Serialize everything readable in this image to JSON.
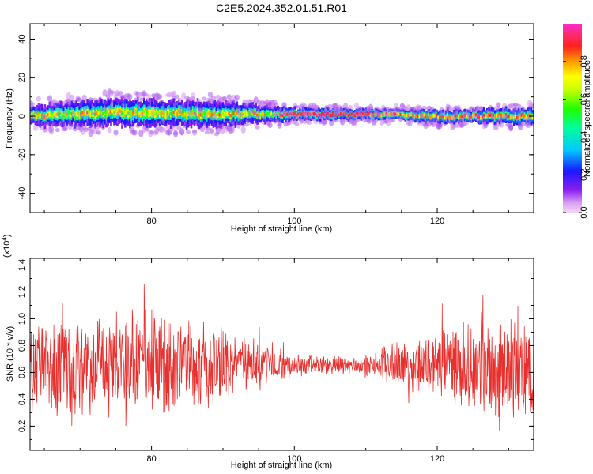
{
  "title": "C2E5.2024.352.01.51.R01",
  "colors": {
    "snr_line": "#e8312f",
    "axis": "#000000"
  },
  "colorbar": {
    "label": "Normalized spectral amplitude",
    "ticks": [
      0.0,
      0.2,
      0.4,
      0.6,
      0.8
    ],
    "tick_labels": [
      "0.0",
      "0.2",
      "0.4",
      "0.6",
      "0.8"
    ],
    "range": [
      0,
      1
    ],
    "colormap": "rainbow (magenta-purple-blue-cyan-green-yellow-orange-red-magenta)"
  },
  "chart_data": [
    {
      "type": "heatmap",
      "name": "spectrogram",
      "xlabel": "Height of straight line (km)",
      "ylabel": "Frequency (Hz)",
      "xlim": [
        63,
        133.5
      ],
      "ylim": [
        -50,
        48
      ],
      "xticks": [
        80,
        100,
        120
      ],
      "xtick_labels": [
        "80",
        "100",
        "120"
      ],
      "yticks": [
        -40,
        -20,
        0,
        20,
        40
      ],
      "ytick_labels": [
        "-40",
        "-20",
        "0",
        "20",
        "40"
      ],
      "description_points": [
        {
          "x": 63,
          "center_freq": 0,
          "halfwidth": 5
        },
        {
          "x": 75,
          "center_freq": 2,
          "halfwidth": 7
        },
        {
          "x": 90,
          "center_freq": 1,
          "halfwidth": 6
        },
        {
          "x": 100,
          "center_freq": 1,
          "halfwidth": 3
        },
        {
          "x": 110,
          "center_freq": 1,
          "halfwidth": 2.5
        },
        {
          "x": 120,
          "center_freq": 0,
          "halfwidth": 3
        },
        {
          "x": 133,
          "center_freq": 0,
          "halfwidth": 4
        }
      ]
    },
    {
      "type": "line",
      "name": "snr",
      "xlabel": "Height of straight line (km)",
      "ylabel": "SNR (10 * v/v)",
      "scale_label": "(x10",
      "scale_exp": "4",
      "scale_close": ")",
      "xlim": [
        63,
        133.5
      ],
      "ylim": [
        0.02,
        1.45
      ],
      "xticks": [
        80,
        100,
        120
      ],
      "xtick_labels": [
        "80",
        "100",
        "120"
      ],
      "yticks": [
        0.2,
        0.4,
        0.6,
        0.8,
        1.0,
        1.2,
        1.4
      ],
      "ytick_labels": [
        "0.2",
        "0.4",
        "0.6",
        "0.8",
        "1.0",
        "1.2",
        "1.4"
      ],
      "envelope": [
        {
          "x": 63,
          "mean": 0.65,
          "amp": 0.35
        },
        {
          "x": 70,
          "mean": 0.66,
          "amp": 0.38
        },
        {
          "x": 80,
          "mean": 0.68,
          "amp": 0.4
        },
        {
          "x": 88,
          "mean": 0.66,
          "amp": 0.32
        },
        {
          "x": 95,
          "mean": 0.66,
          "amp": 0.18
        },
        {
          "x": 100,
          "mean": 0.65,
          "amp": 0.08
        },
        {
          "x": 110,
          "mean": 0.65,
          "amp": 0.06
        },
        {
          "x": 115,
          "mean": 0.66,
          "amp": 0.18
        },
        {
          "x": 122,
          "mean": 0.66,
          "amp": 0.28
        },
        {
          "x": 128,
          "mean": 0.63,
          "amp": 0.35
        },
        {
          "x": 133.5,
          "mean": 0.62,
          "amp": 0.38
        }
      ]
    }
  ]
}
